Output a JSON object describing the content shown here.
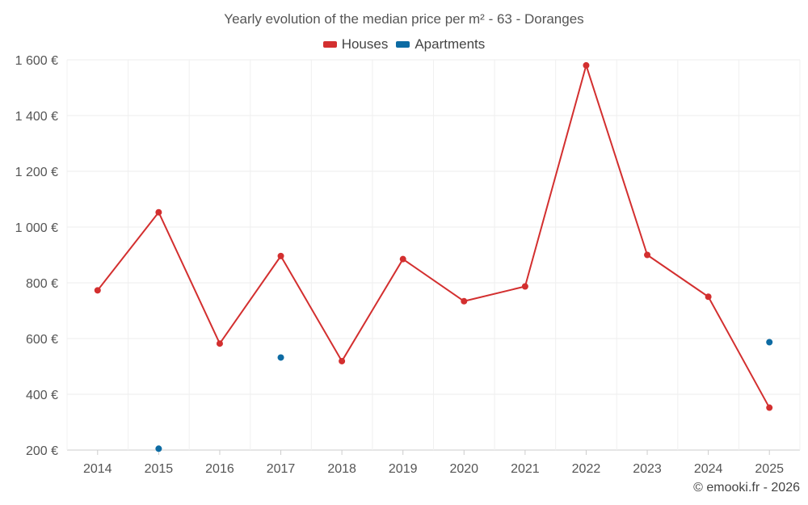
{
  "chart_data": {
    "type": "line",
    "title": "Yearly evolution of the median price per m² - 63 - Doranges",
    "xlabel": "",
    "ylabel": "",
    "categories": [
      "2014",
      "2015",
      "2016",
      "2017",
      "2018",
      "2019",
      "2020",
      "2021",
      "2022",
      "2023",
      "2024",
      "2025"
    ],
    "ylim": [
      200,
      1600
    ],
    "yticks": [
      200,
      400,
      600,
      800,
      1000,
      1200,
      1400,
      1600
    ],
    "ytick_labels": [
      "200 €",
      "400 €",
      "600 €",
      "800 €",
      "1 000 €",
      "1 200 €",
      "1 400 €",
      "1 600 €"
    ],
    "grid": true,
    "legend_position": "top-center",
    "series": [
      {
        "name": "Houses",
        "color": "#d32f2f",
        "line": true,
        "values": [
          773,
          1053,
          582,
          896,
          519,
          885,
          734,
          787,
          1580,
          900,
          750,
          352
        ]
      },
      {
        "name": "Apartments",
        "color": "#0d6ba3",
        "line": false,
        "values": [
          null,
          205,
          null,
          532,
          null,
          null,
          null,
          null,
          null,
          null,
          null,
          587
        ]
      }
    ]
  },
  "footer": {
    "credit": "© emooki.fr - 2026"
  }
}
